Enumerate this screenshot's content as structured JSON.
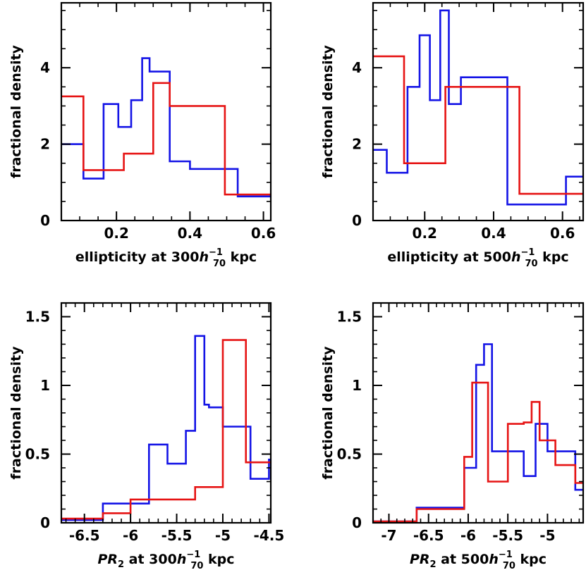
{
  "chart_data": [
    {
      "type": "step",
      "id": "ell300",
      "xlabel": {
        "pre": "ellipticity at 300",
        "h": "h",
        "sup": "−1",
        "sub": "70",
        "post": " kpc",
        "italic_pre": false
      },
      "ylabel": "fractional density",
      "xlim": [
        0.05,
        0.62
      ],
      "ylim": [
        0,
        5.7
      ],
      "xticks": [
        0.2,
        0.4,
        0.6
      ],
      "xtick_labels": [
        "0.2",
        "0.4",
        "0.6"
      ],
      "yticks": [
        0,
        2,
        4
      ],
      "ytick_labels": [
        "0",
        "2",
        "4"
      ],
      "minor_x": 0.05,
      "minor_y": 0.5,
      "series": [
        {
          "name": "blue",
          "color": "#1414e6",
          "edges": [
            0.05,
            0.1,
            0.11,
            0.165,
            0.205,
            0.24,
            0.27,
            0.29,
            0.345,
            0.4,
            0.45,
            0.53,
            0.62
          ],
          "values": [
            2.0,
            2.0,
            1.1,
            3.05,
            2.45,
            3.15,
            4.25,
            3.9,
            1.55,
            1.35,
            1.35,
            0.63
          ]
        },
        {
          "name": "red",
          "color": "#e61414",
          "edges": [
            0.05,
            0.11,
            0.22,
            0.3,
            0.345,
            0.495,
            0.62
          ],
          "values": [
            3.25,
            1.32,
            1.75,
            3.6,
            3.0,
            0.68
          ]
        }
      ]
    },
    {
      "type": "step",
      "id": "ell500",
      "xlabel": {
        "pre": "ellipticity at 500",
        "h": "h",
        "sup": "−1",
        "sub": "70",
        "post": " kpc",
        "italic_pre": false
      },
      "ylabel": "fractional density",
      "xlim": [
        0.05,
        0.66
      ],
      "ylim": [
        0,
        5.7
      ],
      "xticks": [
        0.2,
        0.4,
        0.6
      ],
      "xtick_labels": [
        "0.2",
        "0.4",
        "0.6"
      ],
      "yticks": [
        0,
        2,
        4
      ],
      "ytick_labels": [
        "0",
        "2",
        "4"
      ],
      "minor_x": 0.05,
      "minor_y": 0.5,
      "series": [
        {
          "name": "blue",
          "color": "#1414e6",
          "edges": [
            0.05,
            0.09,
            0.15,
            0.185,
            0.215,
            0.245,
            0.27,
            0.305,
            0.44,
            0.61,
            0.66
          ],
          "values": [
            1.85,
            1.25,
            3.5,
            4.85,
            3.15,
            5.5,
            3.05,
            3.75,
            0.42,
            1.15
          ]
        },
        {
          "name": "red",
          "color": "#e61414",
          "edges": [
            0.05,
            0.14,
            0.26,
            0.475,
            0.66
          ],
          "values": [
            4.3,
            1.5,
            3.5,
            0.7
          ]
        }
      ]
    },
    {
      "type": "step",
      "id": "pr300",
      "xlabel": {
        "pre": "PR",
        "presub": "2",
        "mid": " at 300",
        "h": "h",
        "sup": "−1",
        "sub": "70",
        "post": " kpc",
        "italic_pre": true
      },
      "ylabel": "fractional density",
      "xlim": [
        -6.75,
        -4.48
      ],
      "ylim": [
        0,
        1.6
      ],
      "xticks": [
        -6.5,
        -6,
        -5.5,
        -5,
        -4.5
      ],
      "xtick_labels": [
        "-6.5",
        "-6",
        "-5.5",
        "-5",
        "-4.5"
      ],
      "yticks": [
        0,
        0.5,
        1,
        1.5
      ],
      "ytick_labels": [
        "0",
        "0.5",
        "1",
        "1.5"
      ],
      "minor_x": 0.1,
      "minor_y": 0.1,
      "series": [
        {
          "name": "blue",
          "color": "#1414e6",
          "edges": [
            -6.75,
            -6.5,
            -6.3,
            -6.05,
            -5.8,
            -5.6,
            -5.4,
            -5.3,
            -5.2,
            -5.15,
            -5.0,
            -4.7,
            -4.5,
            -4.48
          ],
          "values": [
            0.02,
            0.02,
            0.14,
            0.14,
            0.57,
            0.43,
            0.67,
            1.36,
            0.86,
            0.84,
            0.7,
            0.32,
            0.46
          ]
        },
        {
          "name": "red",
          "color": "#e61414",
          "edges": [
            -6.75,
            -6.3,
            -6.0,
            -5.3,
            -5.0,
            -4.75,
            -4.48
          ],
          "values": [
            0.03,
            0.07,
            0.17,
            0.26,
            1.33,
            0.44
          ]
        }
      ]
    },
    {
      "type": "step",
      "id": "pr500",
      "xlabel": {
        "pre": "PR",
        "presub": "2",
        "mid": " at 500",
        "h": "h",
        "sup": "−1",
        "sub": "70",
        "post": " kpc",
        "italic_pre": true
      },
      "ylabel": "fractional density",
      "xlim": [
        -7.2,
        -4.55
      ],
      "ylim": [
        0,
        1.6
      ],
      "xticks": [
        -7,
        -6.5,
        -6,
        -5.5,
        -5
      ],
      "xtick_labels": [
        "-7",
        "-6.5",
        "-6",
        "-5.5",
        "-5"
      ],
      "yticks": [
        0,
        0.5,
        1,
        1.5
      ],
      "ytick_labels": [
        "0",
        "0.5",
        "1",
        "1.5"
      ],
      "minor_x": 0.1,
      "minor_y": 0.1,
      "series": [
        {
          "name": "blue",
          "color": "#1414e6",
          "edges": [
            -7.2,
            -6.65,
            -6.05,
            -5.9,
            -5.8,
            -5.7,
            -5.55,
            -5.3,
            -5.15,
            -5.0,
            -4.8,
            -4.65,
            -4.55
          ],
          "values": [
            0.01,
            0.11,
            0.4,
            1.15,
            1.3,
            0.52,
            0.52,
            0.34,
            0.72,
            0.52,
            0.52,
            0.24
          ]
        },
        {
          "name": "red",
          "color": "#e61414",
          "edges": [
            -7.2,
            -6.65,
            -6.05,
            -5.95,
            -5.75,
            -5.5,
            -5.3,
            -5.2,
            -5.1,
            -4.9,
            -4.65,
            -4.55
          ],
          "values": [
            0.01,
            0.1,
            0.48,
            1.02,
            0.3,
            0.72,
            0.73,
            0.88,
            0.6,
            0.42,
            0.29
          ]
        }
      ]
    }
  ]
}
